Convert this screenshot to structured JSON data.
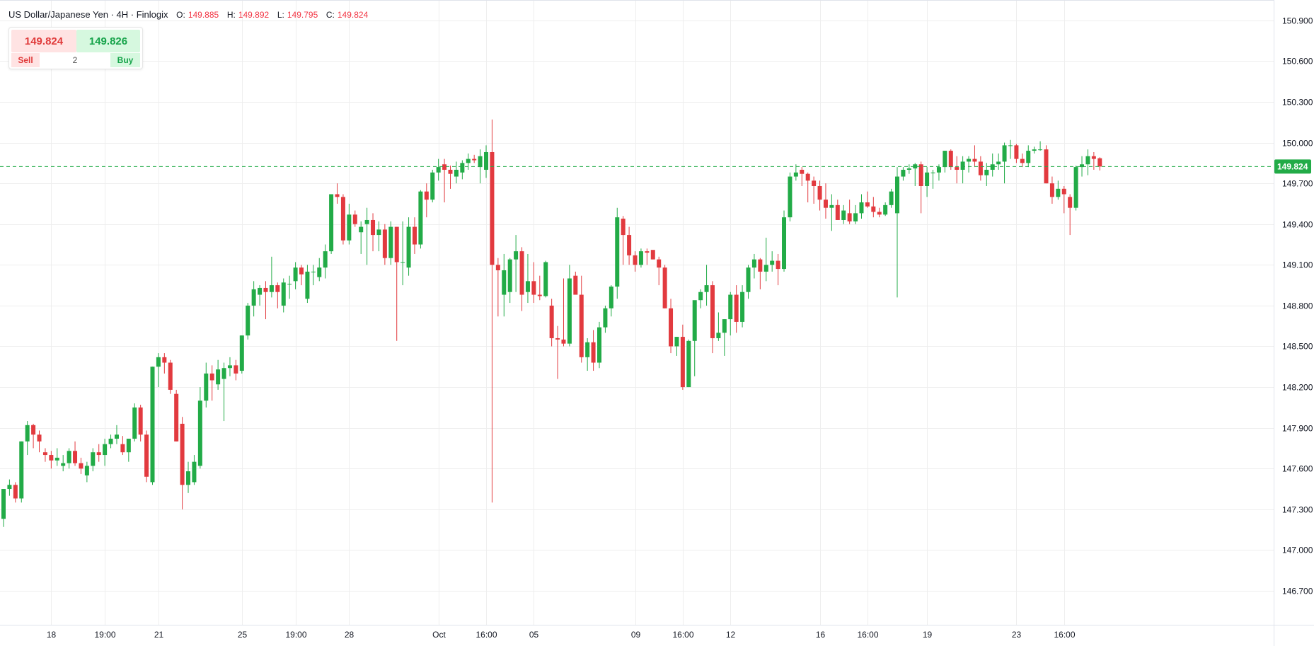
{
  "legend": {
    "symbol": "US Dollar/Japanese Yen",
    "timeframe": "4H",
    "source": "Finlogix",
    "o_label": "O:",
    "o": "149.885",
    "h_label": "H:",
    "h": "149.892",
    "l_label": "L:",
    "l": "149.795",
    "c_label": "C:",
    "c": "149.824"
  },
  "trade_widget": {
    "sell_price": "149.824",
    "buy_price": "149.826",
    "sell_label": "Sell",
    "buy_label": "Buy",
    "quantity": "2"
  },
  "colors": {
    "up": "#22ab47",
    "down": "#e23a3f",
    "last_price_line": "#22ab47",
    "grid": "#eeeeee"
  },
  "chart_data": {
    "type": "candlestick",
    "interval": "4H",
    "ylim": [
      146.45,
      151.05
    ],
    "y_ticks": [
      "150.900",
      "150.600",
      "150.300",
      "150.000",
      "149.700",
      "149.400",
      "149.100",
      "148.800",
      "148.500",
      "148.200",
      "147.900",
      "147.600",
      "147.300",
      "147.000",
      "146.700"
    ],
    "x_ticks": [
      "18",
      "19:00",
      "21",
      "25",
      "19:00",
      "28",
      "Oct",
      "16:00",
      "05",
      "09",
      "16:00",
      "12",
      "16",
      "16:00",
      "19",
      "23",
      "16:00"
    ],
    "x_tick_index": [
      8,
      17,
      26,
      40,
      49,
      58,
      73,
      81,
      89,
      106,
      114,
      122,
      137,
      145,
      155,
      170,
      178
    ],
    "last_price": "149.824",
    "grid": true,
    "candles": [
      [
        147.23,
        147.45,
        147.17,
        147.45
      ],
      [
        147.45,
        147.52,
        147.4,
        147.48
      ],
      [
        147.48,
        147.5,
        147.35,
        147.38
      ],
      [
        147.38,
        147.8,
        147.35,
        147.8
      ],
      [
        147.8,
        147.95,
        147.7,
        147.92
      ],
      [
        147.92,
        147.93,
        147.75,
        147.85
      ],
      [
        147.85,
        147.88,
        147.72,
        147.8
      ],
      [
        147.72,
        147.75,
        147.65,
        147.7
      ],
      [
        147.7,
        147.73,
        147.6,
        147.66
      ],
      [
        147.66,
        147.75,
        147.62,
        147.68
      ],
      [
        147.62,
        147.7,
        147.58,
        147.64
      ],
      [
        147.64,
        147.75,
        147.6,
        147.73
      ],
      [
        147.73,
        147.8,
        147.62,
        147.64
      ],
      [
        147.64,
        147.68,
        147.56,
        147.6
      ],
      [
        147.55,
        147.65,
        147.5,
        147.62
      ],
      [
        147.62,
        147.75,
        147.58,
        147.72
      ],
      [
        147.72,
        147.78,
        147.65,
        147.7
      ],
      [
        147.7,
        147.82,
        147.62,
        147.78
      ],
      [
        147.78,
        147.85,
        147.75,
        147.82
      ],
      [
        147.82,
        147.92,
        147.78,
        147.85
      ],
      [
        147.78,
        147.84,
        147.7,
        147.72
      ],
      [
        147.72,
        147.8,
        147.65,
        147.82
      ],
      [
        147.82,
        148.08,
        147.8,
        148.05
      ],
      [
        148.05,
        148.07,
        147.8,
        147.85
      ],
      [
        147.85,
        147.88,
        147.5,
        147.54
      ],
      [
        147.5,
        148.35,
        147.48,
        148.35
      ],
      [
        148.35,
        148.45,
        148.2,
        148.42
      ],
      [
        148.42,
        148.45,
        148.3,
        148.38
      ],
      [
        148.38,
        148.4,
        148.15,
        148.18
      ],
      [
        148.15,
        148.18,
        147.8,
        147.8
      ],
      [
        147.93,
        147.98,
        147.3,
        147.48
      ],
      [
        147.48,
        147.65,
        147.42,
        147.58
      ],
      [
        147.5,
        147.7,
        147.48,
        147.65
      ],
      [
        147.62,
        148.2,
        147.6,
        148.1
      ],
      [
        148.1,
        148.38,
        148.05,
        148.3
      ],
      [
        148.3,
        148.36,
        148.1,
        148.25
      ],
      [
        148.22,
        148.4,
        148.18,
        148.33
      ],
      [
        148.26,
        148.38,
        147.95,
        148.34
      ],
      [
        148.34,
        148.42,
        148.28,
        148.36
      ],
      [
        148.36,
        148.4,
        148.25,
        148.3
      ],
      [
        148.32,
        148.58,
        148.3,
        148.58
      ],
      [
        148.58,
        148.82,
        148.55,
        148.8
      ],
      [
        148.8,
        148.98,
        148.72,
        148.92
      ],
      [
        148.88,
        148.95,
        148.8,
        148.93
      ],
      [
        148.93,
        148.98,
        148.7,
        148.9
      ],
      [
        148.9,
        149.16,
        148.86,
        148.95
      ],
      [
        148.95,
        148.97,
        148.78,
        148.9
      ],
      [
        148.8,
        149.0,
        148.75,
        148.97
      ],
      [
        148.96,
        149.02,
        148.85,
        148.96
      ],
      [
        148.98,
        149.12,
        148.92,
        149.08
      ],
      [
        149.08,
        149.1,
        148.95,
        149.03
      ],
      [
        148.85,
        149.1,
        148.82,
        149.05
      ],
      [
        149.05,
        149.1,
        148.95,
        149.05
      ],
      [
        149.01,
        149.15,
        148.98,
        149.08
      ],
      [
        149.08,
        149.25,
        149.0,
        149.2
      ],
      [
        149.2,
        149.62,
        149.18,
        149.62
      ],
      [
        149.62,
        149.7,
        149.55,
        149.6
      ],
      [
        149.6,
        149.62,
        149.25,
        149.28
      ],
      [
        149.28,
        149.55,
        149.25,
        149.47
      ],
      [
        149.47,
        149.5,
        149.38,
        149.4
      ],
      [
        149.34,
        149.42,
        149.18,
        149.38
      ],
      [
        149.4,
        149.52,
        149.1,
        149.43
      ],
      [
        149.43,
        149.48,
        149.2,
        149.32
      ],
      [
        149.32,
        149.42,
        149.2,
        149.36
      ],
      [
        149.36,
        149.4,
        149.1,
        149.15
      ],
      [
        149.15,
        149.42,
        149.1,
        149.38
      ],
      [
        149.38,
        149.38,
        148.54,
        149.12
      ],
      [
        149.12,
        149.42,
        148.95,
        149.12
      ],
      [
        149.08,
        149.45,
        149.02,
        149.38
      ],
      [
        149.38,
        149.45,
        149.18,
        149.25
      ],
      [
        149.25,
        149.65,
        149.22,
        149.64
      ],
      [
        149.64,
        149.7,
        149.45,
        149.58
      ],
      [
        149.58,
        149.8,
        149.56,
        149.78
      ],
      [
        149.78,
        149.88,
        149.72,
        149.82
      ],
      [
        149.84,
        149.88,
        149.56,
        149.8
      ],
      [
        149.8,
        149.83,
        149.66,
        149.77
      ],
      [
        149.75,
        149.86,
        149.7,
        149.8
      ],
      [
        149.78,
        149.87,
        149.73,
        149.85
      ],
      [
        149.85,
        149.92,
        149.8,
        149.88
      ],
      [
        149.88,
        149.91,
        149.85,
        149.87
      ],
      [
        149.82,
        149.95,
        149.7,
        149.9
      ],
      [
        149.8,
        149.98,
        149.74,
        149.93
      ],
      [
        149.93,
        150.17,
        147.35,
        149.1
      ],
      [
        149.1,
        149.15,
        148.72,
        149.06
      ],
      [
        148.88,
        149.18,
        148.72,
        149.06
      ],
      [
        148.9,
        149.15,
        148.82,
        149.14
      ],
      [
        149.14,
        149.32,
        148.9,
        149.2
      ],
      [
        149.2,
        149.23,
        148.76,
        148.88
      ],
      [
        148.9,
        149.18,
        148.82,
        148.98
      ],
      [
        148.98,
        149.12,
        148.82,
        148.88
      ],
      [
        148.88,
        149.02,
        148.84,
        148.87
      ],
      [
        148.87,
        149.13,
        148.86,
        149.12
      ],
      [
        148.8,
        148.85,
        148.5,
        148.56
      ],
      [
        148.56,
        148.65,
        148.26,
        148.55
      ],
      [
        148.55,
        149.0,
        148.5,
        148.52
      ],
      [
        148.52,
        149.1,
        148.5,
        149.0
      ],
      [
        149.02,
        149.05,
        148.92,
        148.88
      ],
      [
        148.88,
        149.02,
        148.38,
        148.42
      ],
      [
        148.42,
        148.56,
        148.32,
        148.53
      ],
      [
        148.53,
        148.62,
        148.32,
        148.38
      ],
      [
        148.38,
        148.68,
        148.34,
        148.64
      ],
      [
        148.64,
        148.8,
        148.6,
        148.78
      ],
      [
        148.78,
        148.95,
        148.72,
        148.94
      ],
      [
        148.94,
        149.52,
        148.85,
        149.45
      ],
      [
        149.44,
        149.46,
        149.1,
        149.32
      ],
      [
        149.32,
        149.38,
        149.1,
        149.17
      ],
      [
        149.17,
        149.2,
        149.05,
        149.1
      ],
      [
        149.1,
        149.22,
        149.08,
        149.2
      ],
      [
        149.2,
        149.22,
        149.1,
        149.19
      ],
      [
        149.21,
        149.2,
        149.14,
        149.14
      ],
      [
        149.14,
        149.16,
        148.95,
        149.08
      ],
      [
        149.08,
        149.1,
        148.78,
        148.78
      ],
      [
        148.78,
        148.85,
        148.45,
        148.5
      ],
      [
        148.5,
        148.57,
        148.43,
        148.57
      ],
      [
        148.57,
        148.66,
        148.18,
        148.2
      ],
      [
        148.2,
        148.55,
        148.2,
        148.54
      ],
      [
        148.54,
        148.82,
        148.28,
        148.84
      ],
      [
        148.84,
        148.92,
        148.78,
        148.9
      ],
      [
        148.9,
        149.1,
        148.8,
        148.95
      ],
      [
        148.95,
        148.98,
        148.45,
        148.56
      ],
      [
        148.56,
        148.75,
        148.54,
        148.6
      ],
      [
        148.6,
        148.7,
        148.43,
        148.7
      ],
      [
        148.7,
        148.9,
        148.58,
        148.88
      ],
      [
        148.88,
        148.95,
        148.6,
        148.68
      ],
      [
        148.68,
        148.95,
        148.64,
        148.9
      ],
      [
        148.9,
        149.1,
        148.85,
        149.08
      ],
      [
        149.08,
        149.18,
        149.0,
        149.14
      ],
      [
        149.14,
        149.15,
        148.92,
        149.05
      ],
      [
        149.05,
        149.3,
        148.98,
        149.1
      ],
      [
        149.1,
        149.2,
        149.05,
        149.13
      ],
      [
        149.13,
        149.18,
        148.95,
        149.07
      ],
      [
        149.07,
        149.5,
        149.05,
        149.45
      ],
      [
        149.45,
        149.78,
        149.42,
        149.75
      ],
      [
        149.75,
        149.84,
        149.72,
        149.78
      ],
      [
        149.8,
        149.82,
        149.68,
        149.77
      ],
      [
        149.77,
        149.78,
        149.56,
        149.72
      ],
      [
        149.72,
        149.75,
        149.55,
        149.68
      ],
      [
        149.68,
        149.72,
        149.5,
        149.58
      ],
      [
        149.58,
        149.7,
        149.44,
        149.52
      ],
      [
        149.52,
        149.62,
        149.35,
        149.54
      ],
      [
        149.54,
        149.58,
        149.45,
        149.43
      ],
      [
        149.43,
        149.54,
        149.4,
        149.5
      ],
      [
        149.48,
        149.58,
        149.4,
        149.42
      ],
      [
        149.42,
        149.54,
        149.4,
        149.48
      ],
      [
        149.48,
        149.62,
        149.44,
        149.56
      ],
      [
        149.56,
        149.64,
        149.52,
        149.53
      ],
      [
        149.53,
        149.6,
        149.45,
        149.49
      ],
      [
        149.49,
        149.52,
        149.45,
        149.47
      ],
      [
        149.47,
        149.56,
        149.46,
        149.54
      ],
      [
        149.54,
        149.66,
        149.52,
        149.64
      ],
      [
        149.48,
        149.82,
        148.86,
        149.75
      ],
      [
        149.75,
        149.82,
        149.72,
        149.8
      ],
      [
        149.8,
        149.84,
        149.77,
        149.81
      ],
      [
        149.81,
        149.85,
        149.68,
        149.84
      ],
      [
        149.84,
        149.86,
        149.48,
        149.68
      ],
      [
        149.68,
        149.82,
        149.6,
        149.78
      ],
      [
        149.78,
        149.8,
        149.66,
        149.78
      ],
      [
        149.78,
        149.84,
        149.72,
        149.82
      ],
      [
        149.82,
        149.94,
        149.78,
        149.94
      ],
      [
        149.94,
        149.95,
        149.8,
        149.82
      ],
      [
        149.82,
        149.9,
        149.7,
        149.8
      ],
      [
        149.8,
        149.9,
        149.7,
        149.86
      ],
      [
        149.86,
        149.9,
        149.78,
        149.88
      ],
      [
        149.88,
        149.98,
        149.82,
        149.86
      ],
      [
        149.86,
        149.9,
        149.72,
        149.76
      ],
      [
        149.76,
        149.85,
        149.68,
        149.8
      ],
      [
        149.8,
        149.92,
        149.75,
        149.84
      ],
      [
        149.84,
        149.92,
        149.8,
        149.86
      ],
      [
        149.86,
        150.0,
        149.7,
        149.98
      ],
      [
        149.98,
        150.02,
        149.88,
        149.98
      ],
      [
        149.98,
        149.99,
        149.85,
        149.88
      ],
      [
        149.88,
        149.92,
        149.82,
        149.85
      ],
      [
        149.85,
        149.98,
        149.82,
        149.94
      ],
      [
        149.94,
        149.97,
        149.92,
        149.95
      ],
      [
        149.95,
        150.01,
        149.94,
        149.95
      ],
      [
        149.95,
        149.98,
        149.7,
        149.7
      ],
      [
        149.7,
        149.75,
        149.55,
        149.6
      ],
      [
        149.6,
        149.72,
        149.58,
        149.66
      ],
      [
        149.66,
        149.68,
        149.48,
        149.62
      ],
      [
        149.6,
        149.62,
        149.32,
        149.52
      ],
      [
        149.52,
        149.83,
        149.5,
        149.82
      ],
      [
        149.82,
        149.9,
        149.75,
        149.84
      ],
      [
        149.84,
        149.95,
        149.76,
        149.9
      ],
      [
        149.9,
        149.93,
        149.8,
        149.88
      ],
      [
        149.885,
        149.892,
        149.795,
        149.824
      ]
    ]
  }
}
